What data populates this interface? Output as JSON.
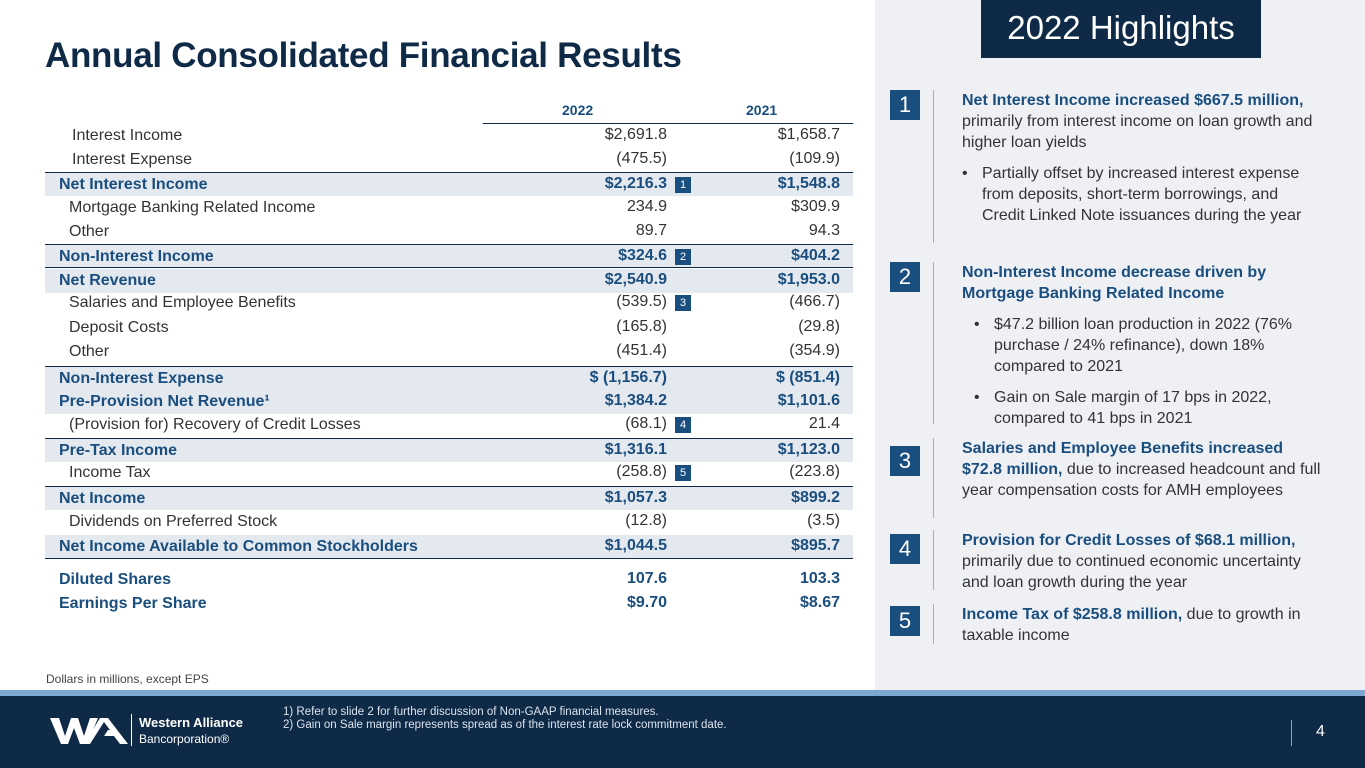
{
  "title": "Annual Consolidated Financial Results",
  "table": {
    "col_2022": "2022",
    "col_2021": "2021",
    "rows": [
      {
        "label": "Interest Income",
        "v2022": "$2,691.8",
        "v2021": "$1,658.7",
        "marker": ""
      },
      {
        "label": "Interest Expense",
        "v2022": "(475.5)",
        "v2021": "(109.9)",
        "marker": ""
      },
      {
        "label": "Net Interest Income",
        "v2022": "$2,216.3",
        "v2021": "$1,548.8",
        "marker": "1"
      },
      {
        "label": "Mortgage Banking Related Income",
        "v2022": "234.9",
        "v2021": "$309.9",
        "marker": ""
      },
      {
        "label": "Other",
        "v2022": "89.7",
        "v2021": "94.3",
        "marker": ""
      },
      {
        "label": "Non-Interest Income",
        "v2022": "$324.6",
        "v2021": "$404.2",
        "marker": "2"
      },
      {
        "label": "Net Revenue",
        "v2022": "$2,540.9",
        "v2021": "$1,953.0",
        "marker": ""
      },
      {
        "label": "Salaries and Employee Benefits",
        "v2022": "(539.5)",
        "v2021": "(466.7)",
        "marker": "3"
      },
      {
        "label": "Deposit Costs",
        "v2022": "(165.8)",
        "v2021": "(29.8)",
        "marker": ""
      },
      {
        "label": "Other",
        "v2022": "(451.4)",
        "v2021": "(354.9)",
        "marker": ""
      },
      {
        "label": "Non-Interest Expense",
        "v2022": "$ (1,156.7)",
        "v2021": "$ (851.4)",
        "marker": ""
      },
      {
        "label": "Pre-Provision Net Revenue¹",
        "v2022": "$1,384.2",
        "v2021": "$1,101.6",
        "marker": ""
      },
      {
        "label": "(Provision for) Recovery of Credit Losses",
        "v2022": "(68.1)",
        "v2021": "21.4",
        "marker": "4"
      },
      {
        "label": "Pre-Tax Income",
        "v2022": "$1,316.1",
        "v2021": "$1,123.0",
        "marker": ""
      },
      {
        "label": "Income Tax",
        "v2022": "(258.8)",
        "v2021": "(223.8)",
        "marker": "5"
      },
      {
        "label": "Net Income",
        "v2022": "$1,057.3",
        "v2021": "$899.2",
        "marker": ""
      },
      {
        "label": "Dividends on Preferred Stock",
        "v2022": "(12.8)",
        "v2021": "(3.5)",
        "marker": ""
      },
      {
        "label": "Net Income Available to Common Stockholders",
        "v2022": "$1,044.5",
        "v2021": "$895.7",
        "marker": ""
      },
      {
        "label": "Diluted Shares",
        "v2022": "107.6",
        "v2021": "103.3",
        "marker": ""
      },
      {
        "label": "Earnings Per Share",
        "v2022": "$9.70",
        "v2021": "$8.67",
        "marker": ""
      }
    ]
  },
  "dollars_note": "Dollars in millions, except EPS",
  "highlights": {
    "title": "2022 Highlights",
    "items": [
      {
        "num": "1",
        "bold": "Net Interest Income increased $667.5 million,",
        "text": " primarily from interest income on loan growth and higher loan yields",
        "bullets": [
          "Partially offset by increased interest expense from deposits, short-term borrowings, and Credit Linked Note issuances during the year"
        ]
      },
      {
        "num": "2",
        "bold": "Non-Interest Income decrease driven by Mortgage Banking Related Income",
        "text": "",
        "bullets": [
          "$47.2 billion loan production in 2022 (76% purchase / 24% refinance), down 18% compared to 2021",
          "Gain on Sale margin of 17 bps in 2022, compared to 41 bps in 2021"
        ]
      },
      {
        "num": "3",
        "bold": "Salaries and Employee Benefits increased $72.8 million,",
        "text": " due to increased headcount and full year compensation costs for AMH employees",
        "bullets": []
      },
      {
        "num": "4",
        "bold": "Provision for Credit Losses of $68.1 million,",
        "text": " primarily due to continued economic uncertainty and loan growth during the year",
        "bullets": []
      },
      {
        "num": "5",
        "bold": "Income Tax of $258.8 million,",
        "text": " due to growth in taxable income",
        "bullets": []
      }
    ]
  },
  "footer": {
    "logo_line1": "Western Alliance",
    "logo_line2": "Bancorporation®",
    "note1": "1)   Refer to slide 2 for further discussion of Non-GAAP financial measures.",
    "note2": "2)   Gain on Sale margin represents spread as of the interest rate lock commitment date.",
    "page": "4",
    "colors": {
      "navy": "#0f2a47",
      "accent": "#1a4e7e",
      "strip": "#7aa8d2"
    }
  }
}
